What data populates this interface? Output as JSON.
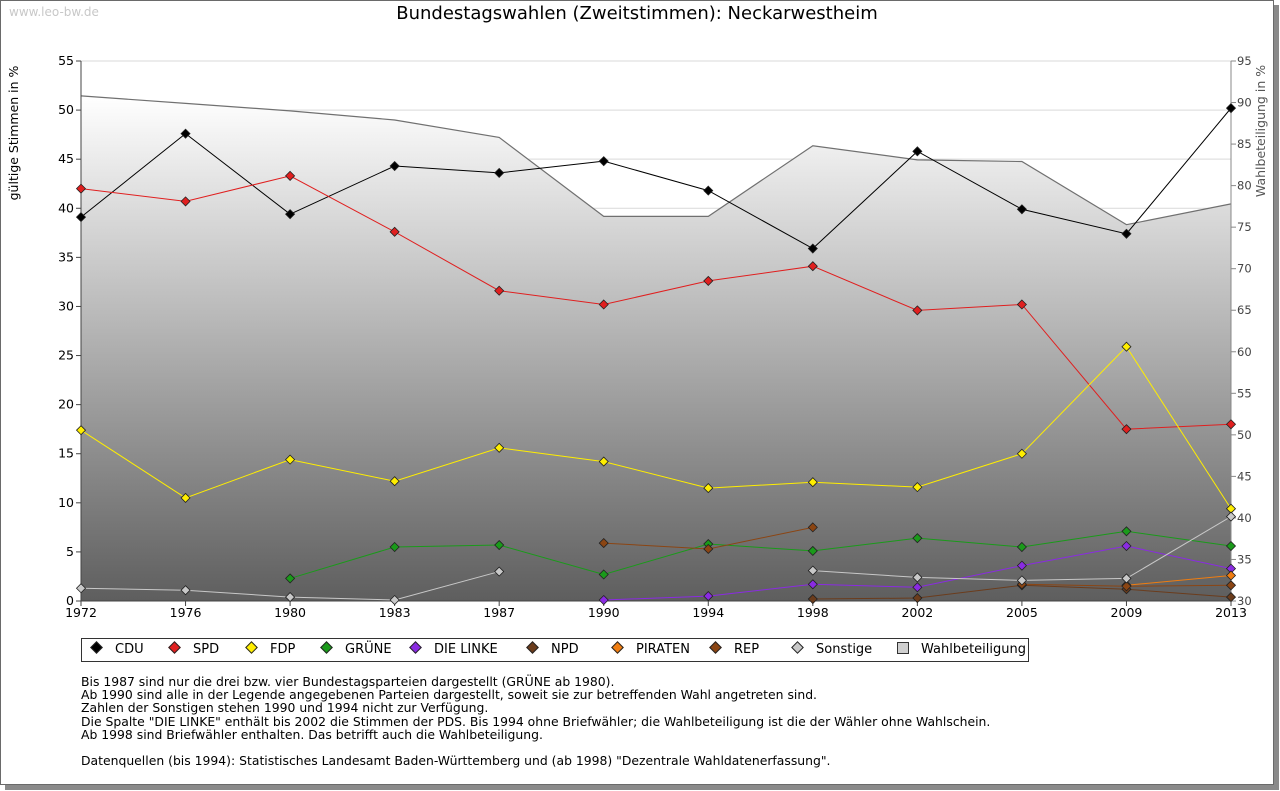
{
  "watermark": "www.leo-bw.de",
  "chart_data": {
    "type": "line",
    "title": "Bundestagswahlen (Zweitstimmen): Neckarwestheim",
    "ylabel": "gültige Stimmen in %",
    "ylabel_right": "Wahlbeteiligung in %",
    "ylim": [
      0,
      55
    ],
    "ylim_right": [
      30,
      95
    ],
    "y_ticks": [
      0,
      5,
      10,
      15,
      20,
      25,
      30,
      35,
      40,
      45,
      50,
      55
    ],
    "y_ticks_right": [
      30,
      35,
      40,
      45,
      50,
      55,
      60,
      65,
      70,
      75,
      80,
      85,
      90,
      95
    ],
    "grid": true,
    "legend_position": "bottom",
    "x": [
      "1972",
      "1976",
      "1980",
      "1983",
      "1987",
      "1990",
      "1994",
      "1998",
      "2002",
      "2005",
      "2009",
      "2013"
    ],
    "series": [
      {
        "name": "CDU",
        "color": "#000000",
        "values": [
          39.1,
          47.6,
          39.4,
          44.3,
          43.6,
          44.8,
          41.8,
          35.9,
          45.8,
          39.9,
          37.4,
          50.2
        ]
      },
      {
        "name": "SPD",
        "color": "#e01f1f",
        "values": [
          42.0,
          40.7,
          43.3,
          37.6,
          31.6,
          30.2,
          32.6,
          34.1,
          29.6,
          30.2,
          17.5,
          18.0
        ]
      },
      {
        "name": "FDP",
        "color": "#ffee00",
        "values": [
          17.4,
          10.5,
          14.4,
          12.2,
          15.6,
          14.2,
          11.5,
          12.1,
          11.6,
          15.0,
          25.9,
          9.4
        ]
      },
      {
        "name": "GRÜNE",
        "color": "#1a9a1a",
        "values": [
          null,
          null,
          2.3,
          5.5,
          5.7,
          2.7,
          5.8,
          5.1,
          6.4,
          5.5,
          7.1,
          5.6
        ]
      },
      {
        "name": "DIE LINKE",
        "color": "#8a2be2",
        "values": [
          null,
          null,
          null,
          null,
          null,
          0.1,
          0.5,
          1.7,
          1.4,
          3.6,
          5.6,
          3.3
        ]
      },
      {
        "name": "NPD",
        "color": "#6b3c1c",
        "values": [
          null,
          null,
          null,
          null,
          null,
          null,
          null,
          0.2,
          0.3,
          1.6,
          1.2,
          0.4
        ]
      },
      {
        "name": "PIRATEN",
        "color": "#f07d10",
        "values": [
          null,
          null,
          null,
          null,
          null,
          null,
          null,
          null,
          null,
          null,
          1.6,
          2.6
        ]
      },
      {
        "name": "REP",
        "color": "#8b4513",
        "values": [
          null,
          null,
          null,
          null,
          null,
          5.9,
          5.3,
          7.5,
          null,
          1.7,
          1.5,
          1.6
        ]
      },
      {
        "name": "Sonstige",
        "color": "#c8c8c8",
        "values": [
          1.3,
          1.1,
          0.4,
          0.1,
          3.0,
          null,
          null,
          3.1,
          2.4,
          2.1,
          2.3,
          8.6
        ]
      }
    ],
    "turnout": {
      "name": "Wahlbeteiligung",
      "values": [
        90.8,
        89.9,
        89.0,
        87.9,
        85.8,
        76.3,
        76.3,
        84.8,
        83.1,
        82.9,
        75.3,
        77.8
      ]
    }
  },
  "notes": [
    "Bis 1987 sind nur die drei bzw. vier Bundestagsparteien dargestellt (GRÜNE ab 1980).",
    "Ab 1990 sind alle in der Legende angegebenen Parteien dargestellt, soweit sie zur betreffenden Wahl angetreten sind.",
    "Zahlen der Sonstigen stehen 1990 und 1994 nicht zur Verfügung.",
    "Die Spalte \"DIE LINKE\" enthält bis 2002 die Stimmen der PDS. Bis 1994 ohne Briefwähler; die Wahlbeteiligung ist die der Wähler ohne Wahlschein.",
    "Ab 1998 sind Briefwähler enthalten. Das betrifft auch die Wahlbeteiligung."
  ],
  "source": "Datenquellen (bis 1994): Statistisches Landesamt Baden-Württemberg und (ab 1998) \"Dezentrale Wahldatenerfassung\"."
}
